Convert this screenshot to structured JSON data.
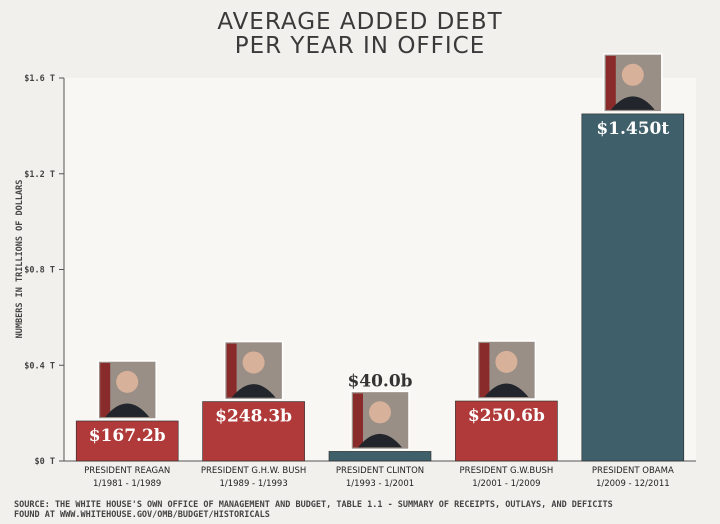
{
  "title_line1": "AVERAGE ADDED DEBT",
  "title_line2": "PER YEAR IN OFFICE",
  "chart_data": {
    "type": "bar",
    "title": "AVERAGE ADDED DEBT PER YEAR IN OFFICE",
    "ylabel": "NUMBERS IN TRILLIONS OF DOLLARS",
    "ylim": [
      0,
      1.6
    ],
    "yticks": [
      0,
      0.4,
      0.8,
      1.2,
      1.6
    ],
    "ytick_labels": [
      "$0 T",
      "$0.4 T",
      "$0.8 T",
      "$1.2 T",
      "$1.6 T"
    ],
    "grid": false,
    "categories": [
      "PRESIDENT REAGAN",
      "PRESIDENT G.H.W. BUSH",
      "PRESIDENT CLINTON",
      "PRESIDENT G.W.BUSH",
      "PRESIDENT OBAMA"
    ],
    "terms": [
      "1/1981 - 1/1989",
      "1/1989 - 1/1993",
      "1/1993 - 1/2001",
      "1/2001 - 1/2009",
      "1/2009 - 12/2011"
    ],
    "values": [
      0.1672,
      0.2483,
      0.04,
      0.2506,
      1.45
    ],
    "value_labels": [
      "$167.2b",
      "$248.3b",
      "$40.0b",
      "$250.6b",
      "$1.450t"
    ],
    "colors": [
      "#b03a3a",
      "#b03a3a",
      "#3f5f6a",
      "#b03a3a",
      "#3f5f6a"
    ]
  },
  "source_line1": "SOURCE: THE WHITE HOUSE'S OWN OFFICE OF MANAGEMENT AND BUDGET, TABLE 1.1 - SUMMARY OF RECEIPTS, OUTLAYS, AND DEFICITS",
  "source_line2": "FOUND AT WWW.WHITEHOUSE.GOV/OMB/BUDGET/HISTORICALS"
}
